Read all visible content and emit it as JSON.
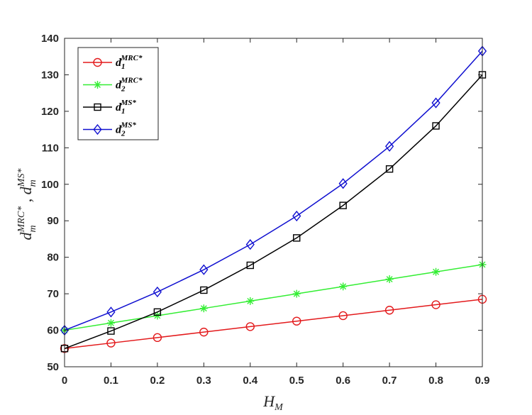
{
  "chart_data": {
    "type": "line",
    "x": [
      0,
      0.1,
      0.2,
      0.3,
      0.4,
      0.5,
      0.6,
      0.7,
      0.8,
      0.9
    ],
    "xlim": [
      0,
      0.9
    ],
    "ylim": [
      50,
      140
    ],
    "xticks": [
      "0",
      "0.1",
      "0.2",
      "0.3",
      "0.4",
      "0.5",
      "0.6",
      "0.7",
      "0.8",
      "0.9"
    ],
    "yticks": [
      "50",
      "60",
      "70",
      "80",
      "90",
      "100",
      "110",
      "120",
      "130",
      "140"
    ],
    "xlabel": {
      "base": "H",
      "sub": "M"
    },
    "ylabel": {
      "a_base": "d",
      "a_sub": "m",
      "a_sup": "MRC*",
      "sep": " , ",
      "b_base": "d",
      "b_sub": "m",
      "b_sup": "MS*"
    },
    "legend_position": "top-left",
    "grid": false,
    "series": [
      {
        "name": {
          "base": "d",
          "sub": "1",
          "sup": "MRC*"
        },
        "color": "#e31a1c",
        "marker": "circle",
        "values": [
          55,
          56.5,
          58,
          59.5,
          61,
          62.5,
          64,
          65.5,
          67,
          68.5
        ]
      },
      {
        "name": {
          "base": "d",
          "sub": "2",
          "sup": "MRC*"
        },
        "color": "#33ee33",
        "marker": "asterisk",
        "values": [
          60,
          62,
          64,
          66,
          68,
          70,
          72,
          74,
          76,
          78
        ]
      },
      {
        "name": {
          "base": "d",
          "sub": "1",
          "sup": "MS*"
        },
        "color": "#000000",
        "marker": "square",
        "values": [
          55,
          59.8,
          65,
          71,
          77.8,
          85.3,
          94.2,
          104.2,
          116,
          130
        ]
      },
      {
        "name": {
          "base": "d",
          "sub": "2",
          "sup": "MS*"
        },
        "color": "#1010d0",
        "marker": "diamond",
        "values": [
          60,
          65,
          70.5,
          76.6,
          83.5,
          91.3,
          100.2,
          110.4,
          122.3,
          136.5
        ]
      }
    ]
  }
}
